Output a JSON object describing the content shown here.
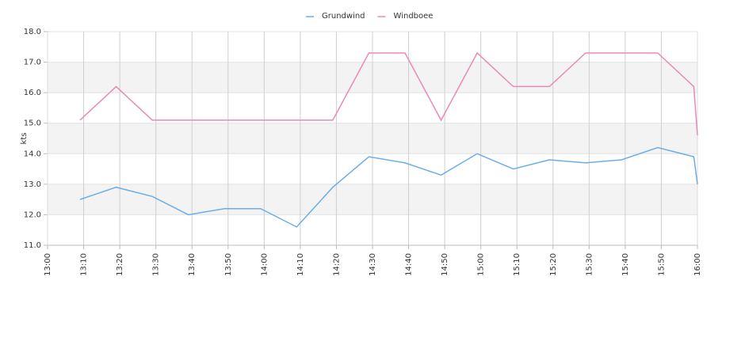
{
  "chart_data": {
    "type": "line",
    "y_label": "kts",
    "x": [
      789,
      799,
      809,
      819,
      829,
      839,
      849,
      859,
      869,
      879,
      889,
      899,
      909,
      919,
      929,
      939,
      949,
      959,
      960
    ],
    "series": [
      {
        "name": "Grundwind",
        "color": "#6aaee8",
        "values": [
          12.5,
          12.9,
          12.6,
          12.0,
          12.2,
          12.2,
          11.6,
          12.9,
          13.9,
          13.7,
          13.3,
          14.0,
          13.5,
          13.8,
          13.7,
          13.8,
          14.2,
          13.9,
          13.0
        ]
      },
      {
        "name": "Windboee",
        "color": "#e88ab8",
        "values": [
          15.1,
          16.2,
          15.1,
          15.1,
          15.1,
          15.1,
          15.1,
          15.1,
          17.3,
          17.3,
          15.1,
          17.3,
          16.2,
          16.2,
          17.3,
          17.3,
          17.3,
          16.2,
          14.6
        ]
      }
    ],
    "xlim": [
      780,
      960
    ],
    "xticks": [
      {
        "value": 780,
        "label": "13:00"
      },
      {
        "value": 790,
        "label": "13:10"
      },
      {
        "value": 800,
        "label": "13:20"
      },
      {
        "value": 810,
        "label": "13:30"
      },
      {
        "value": 820,
        "label": "13:40"
      },
      {
        "value": 830,
        "label": "13:50"
      },
      {
        "value": 840,
        "label": "14:00"
      },
      {
        "value": 850,
        "label": "14:10"
      },
      {
        "value": 860,
        "label": "14:20"
      },
      {
        "value": 870,
        "label": "14:30"
      },
      {
        "value": 880,
        "label": "14:40"
      },
      {
        "value": 890,
        "label": "14:50"
      },
      {
        "value": 900,
        "label": "15:00"
      },
      {
        "value": 910,
        "label": "15:10"
      },
      {
        "value": 920,
        "label": "15:20"
      },
      {
        "value": 930,
        "label": "15:30"
      },
      {
        "value": 940,
        "label": "15:40"
      },
      {
        "value": 950,
        "label": "15:50"
      },
      {
        "value": 960,
        "label": "16:00"
      }
    ],
    "ylim": [
      11,
      18
    ],
    "yticks": [
      {
        "value": 11,
        "label": "11.0"
      },
      {
        "value": 12,
        "label": "12.0"
      },
      {
        "value": 13,
        "label": "13.0"
      },
      {
        "value": 14,
        "label": "14.0"
      },
      {
        "value": 15,
        "label": "15.0"
      },
      {
        "value": 16,
        "label": "16.0"
      },
      {
        "value": 17,
        "label": "17.0"
      },
      {
        "value": 18,
        "label": "18.0"
      }
    ],
    "grid": true
  }
}
